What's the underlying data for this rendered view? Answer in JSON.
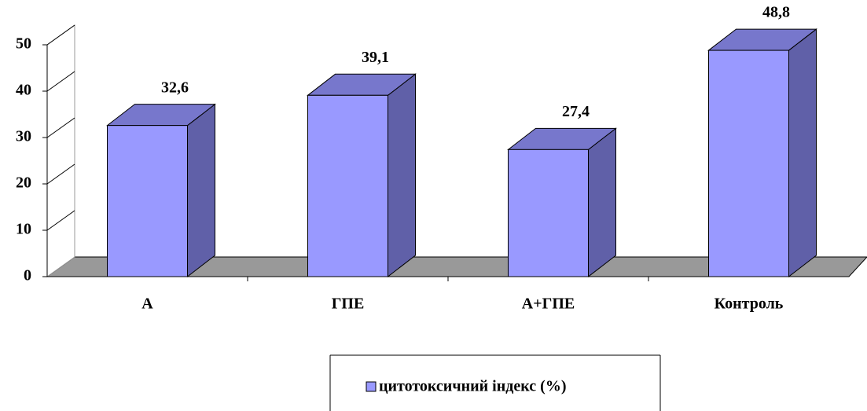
{
  "chart_data": {
    "type": "bar",
    "categories": [
      "А",
      "ГПЕ",
      "А+ГПЕ",
      "Контроль"
    ],
    "series": [
      {
        "name": "цитотоксичний індекс (%)",
        "color": "#9999ff",
        "values": [
          32.6,
          39.1,
          27.4,
          48.8
        ],
        "value_labels": [
          "32,6",
          "39,1",
          "27,4",
          "48,8"
        ]
      }
    ],
    "ylim": [
      0,
      50
    ],
    "yticks": [
      0,
      10,
      20,
      30,
      40,
      50
    ],
    "grid": true,
    "legend": "bottom"
  }
}
